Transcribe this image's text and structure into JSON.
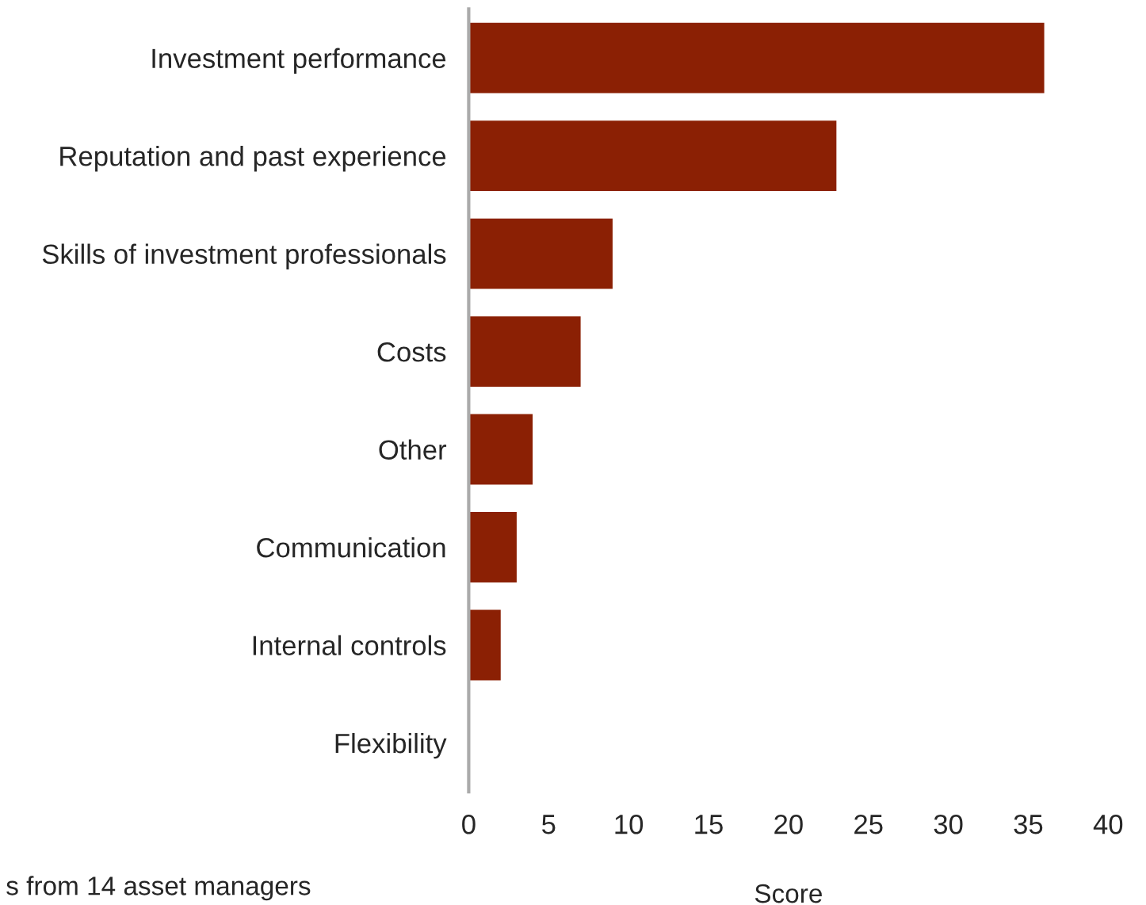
{
  "chart_data": {
    "type": "bar",
    "orientation": "horizontal",
    "categories": [
      "Investment performance",
      "Reputation and past experience",
      "Skills of investment professionals",
      "Costs",
      "Other",
      "Communication",
      "Internal controls",
      "Flexibility"
    ],
    "values": [
      36,
      23,
      9,
      7,
      4,
      3,
      2,
      0
    ],
    "color": "#8b2004",
    "xlim": [
      0,
      40
    ],
    "xticks": [
      0,
      5,
      10,
      15,
      20,
      25,
      30,
      35,
      40
    ],
    "xlabel": "Score",
    "annotations": [
      "s from 14 asset managers"
    ],
    "grid": false,
    "legend": false
  }
}
